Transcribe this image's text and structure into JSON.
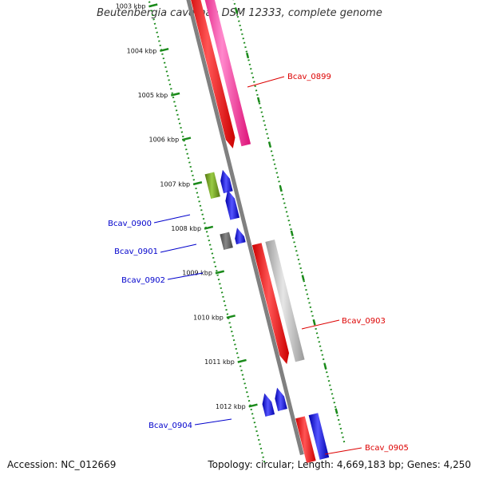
{
  "title": "Beutenbergia cavernae DSM 12333, complete genome",
  "footer": {
    "accession": "Accession: NC_012669",
    "summary": "Topology: circular; Length: 4,669,183 bp; Genes: 4,250"
  },
  "ticks": [
    {
      "label": "1003 kbp",
      "kbp": 1003
    },
    {
      "label": "1004 kbp",
      "kbp": 1004
    },
    {
      "label": "1005 kbp",
      "kbp": 1005
    },
    {
      "label": "1006 kbp",
      "kbp": 1006
    },
    {
      "label": "1007 kbp",
      "kbp": 1007
    },
    {
      "label": "1008 kbp",
      "kbp": 1008
    },
    {
      "label": "1009 kbp",
      "kbp": 1009
    },
    {
      "label": "1010 kbp",
      "kbp": 1010
    },
    {
      "label": "1011 kbp",
      "kbp": 1011
    },
    {
      "label": "1012 kbp",
      "kbp": 1012
    }
  ],
  "genes": [
    {
      "label": "Bcav_0899",
      "color": "#ff0000",
      "labelColor": "#dd0000",
      "strand": "forward"
    },
    {
      "label": "Bcav_0900",
      "color": "#0000ee",
      "labelColor": "#0000cc",
      "strand": "reverse"
    },
    {
      "label": "Bcav_0901",
      "color": "#0000ee",
      "labelColor": "#0000cc",
      "strand": "reverse"
    },
    {
      "label": "Bcav_0902",
      "color": "#0000ee",
      "labelColor": "#0000cc",
      "strand": "reverse"
    },
    {
      "label": "Bcav_0903",
      "color": "#ff0000",
      "labelColor": "#dd0000",
      "strand": "forward"
    },
    {
      "label": "Bcav_0904",
      "color": "#0000ee",
      "labelColor": "#0000cc",
      "strand": "reverse"
    },
    {
      "label": "Bcav_0905",
      "color": "#ff0000",
      "labelColor": "#dd0000",
      "strand": "forward"
    }
  ],
  "colors": {
    "backbone": "#808080",
    "tickDots": "#1a8a1a",
    "cogPink": "#ff3399",
    "cogGray": "#b0b0b0",
    "cogOlive": "#669922",
    "cogDarkGray": "#555555",
    "cogBlue": "#0000ee"
  }
}
